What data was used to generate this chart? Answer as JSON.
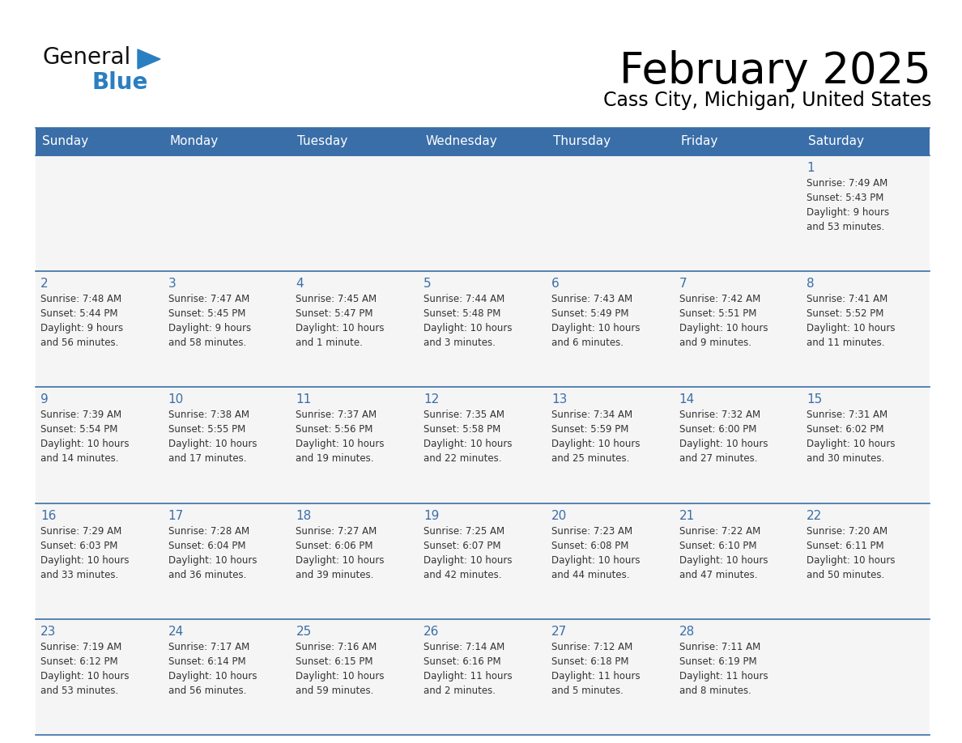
{
  "title": "February 2025",
  "subtitle": "Cass City, Michigan, United States",
  "header_bg_color": "#3a6ea8",
  "header_text_color": "#ffffff",
  "cell_bg_even": "#f5f5f5",
  "cell_bg_odd": "#ffffff",
  "cell_text_color": "#333333",
  "day_num_color": "#3a6ea8",
  "border_color": "#3a6ea8",
  "cell_border_color": "#cccccc",
  "days_of_week": [
    "Sunday",
    "Monday",
    "Tuesday",
    "Wednesday",
    "Thursday",
    "Friday",
    "Saturday"
  ],
  "logo_general_color": "#111111",
  "logo_blue_color": "#2a7fc1",
  "weeks": [
    [
      {
        "day": 0,
        "text": ""
      },
      {
        "day": 0,
        "text": ""
      },
      {
        "day": 0,
        "text": ""
      },
      {
        "day": 0,
        "text": ""
      },
      {
        "day": 0,
        "text": ""
      },
      {
        "day": 0,
        "text": ""
      },
      {
        "day": 1,
        "text": "Sunrise: 7:49 AM\nSunset: 5:43 PM\nDaylight: 9 hours\nand 53 minutes."
      }
    ],
    [
      {
        "day": 2,
        "text": "Sunrise: 7:48 AM\nSunset: 5:44 PM\nDaylight: 9 hours\nand 56 minutes."
      },
      {
        "day": 3,
        "text": "Sunrise: 7:47 AM\nSunset: 5:45 PM\nDaylight: 9 hours\nand 58 minutes."
      },
      {
        "day": 4,
        "text": "Sunrise: 7:45 AM\nSunset: 5:47 PM\nDaylight: 10 hours\nand 1 minute."
      },
      {
        "day": 5,
        "text": "Sunrise: 7:44 AM\nSunset: 5:48 PM\nDaylight: 10 hours\nand 3 minutes."
      },
      {
        "day": 6,
        "text": "Sunrise: 7:43 AM\nSunset: 5:49 PM\nDaylight: 10 hours\nand 6 minutes."
      },
      {
        "day": 7,
        "text": "Sunrise: 7:42 AM\nSunset: 5:51 PM\nDaylight: 10 hours\nand 9 minutes."
      },
      {
        "day": 8,
        "text": "Sunrise: 7:41 AM\nSunset: 5:52 PM\nDaylight: 10 hours\nand 11 minutes."
      }
    ],
    [
      {
        "day": 9,
        "text": "Sunrise: 7:39 AM\nSunset: 5:54 PM\nDaylight: 10 hours\nand 14 minutes."
      },
      {
        "day": 10,
        "text": "Sunrise: 7:38 AM\nSunset: 5:55 PM\nDaylight: 10 hours\nand 17 minutes."
      },
      {
        "day": 11,
        "text": "Sunrise: 7:37 AM\nSunset: 5:56 PM\nDaylight: 10 hours\nand 19 minutes."
      },
      {
        "day": 12,
        "text": "Sunrise: 7:35 AM\nSunset: 5:58 PM\nDaylight: 10 hours\nand 22 minutes."
      },
      {
        "day": 13,
        "text": "Sunrise: 7:34 AM\nSunset: 5:59 PM\nDaylight: 10 hours\nand 25 minutes."
      },
      {
        "day": 14,
        "text": "Sunrise: 7:32 AM\nSunset: 6:00 PM\nDaylight: 10 hours\nand 27 minutes."
      },
      {
        "day": 15,
        "text": "Sunrise: 7:31 AM\nSunset: 6:02 PM\nDaylight: 10 hours\nand 30 minutes."
      }
    ],
    [
      {
        "day": 16,
        "text": "Sunrise: 7:29 AM\nSunset: 6:03 PM\nDaylight: 10 hours\nand 33 minutes."
      },
      {
        "day": 17,
        "text": "Sunrise: 7:28 AM\nSunset: 6:04 PM\nDaylight: 10 hours\nand 36 minutes."
      },
      {
        "day": 18,
        "text": "Sunrise: 7:27 AM\nSunset: 6:06 PM\nDaylight: 10 hours\nand 39 minutes."
      },
      {
        "day": 19,
        "text": "Sunrise: 7:25 AM\nSunset: 6:07 PM\nDaylight: 10 hours\nand 42 minutes."
      },
      {
        "day": 20,
        "text": "Sunrise: 7:23 AM\nSunset: 6:08 PM\nDaylight: 10 hours\nand 44 minutes."
      },
      {
        "day": 21,
        "text": "Sunrise: 7:22 AM\nSunset: 6:10 PM\nDaylight: 10 hours\nand 47 minutes."
      },
      {
        "day": 22,
        "text": "Sunrise: 7:20 AM\nSunset: 6:11 PM\nDaylight: 10 hours\nand 50 minutes."
      }
    ],
    [
      {
        "day": 23,
        "text": "Sunrise: 7:19 AM\nSunset: 6:12 PM\nDaylight: 10 hours\nand 53 minutes."
      },
      {
        "day": 24,
        "text": "Sunrise: 7:17 AM\nSunset: 6:14 PM\nDaylight: 10 hours\nand 56 minutes."
      },
      {
        "day": 25,
        "text": "Sunrise: 7:16 AM\nSunset: 6:15 PM\nDaylight: 10 hours\nand 59 minutes."
      },
      {
        "day": 26,
        "text": "Sunrise: 7:14 AM\nSunset: 6:16 PM\nDaylight: 11 hours\nand 2 minutes."
      },
      {
        "day": 27,
        "text": "Sunrise: 7:12 AM\nSunset: 6:18 PM\nDaylight: 11 hours\nand 5 minutes."
      },
      {
        "day": 28,
        "text": "Sunrise: 7:11 AM\nSunset: 6:19 PM\nDaylight: 11 hours\nand 8 minutes."
      },
      {
        "day": 0,
        "text": ""
      }
    ]
  ]
}
